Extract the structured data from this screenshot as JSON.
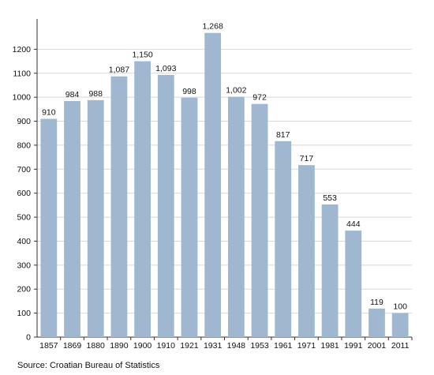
{
  "chart_data": {
    "type": "bar",
    "categories": [
      "1857",
      "1869",
      "1880",
      "1890",
      "1900",
      "1910",
      "1921",
      "1931",
      "1948",
      "1953",
      "1961",
      "1971",
      "1981",
      "1991",
      "2001",
      "2011"
    ],
    "values": [
      910,
      984,
      988,
      1087,
      1150,
      1093,
      998,
      1268,
      1002,
      972,
      817,
      717,
      553,
      444,
      119,
      100
    ],
    "value_labels": [
      "910",
      "984",
      "988",
      "1,087",
      "1,150",
      "1,093",
      "998",
      "1,268",
      "1,002",
      "972",
      "817",
      "717",
      "553",
      "444",
      "119",
      "100"
    ],
    "ylim": [
      0,
      1300
    ],
    "yticks": [
      0,
      100,
      200,
      300,
      400,
      500,
      600,
      700,
      800,
      900,
      1000,
      1100,
      1200
    ],
    "grid": true,
    "bar_color": "#a0b8cf",
    "grid_color": "#d8d8d8",
    "source": "Source: Croatian Bureau of Statistics"
  }
}
